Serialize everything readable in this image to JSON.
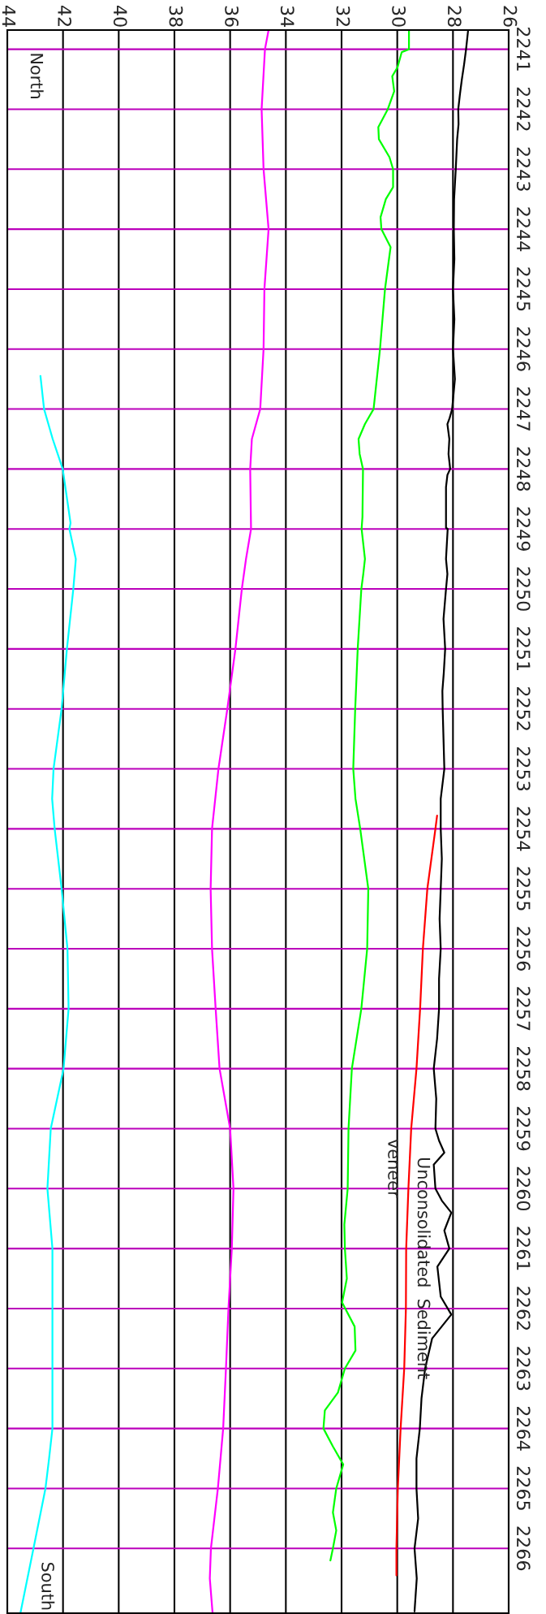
{
  "chart_data": {
    "type": "line",
    "ylim": [
      2267.08,
      2240.68
    ],
    "yticks": [
      2241,
      2242,
      2243,
      2244,
      2245,
      2246,
      2247,
      2248,
      2249,
      2250,
      2251,
      2252,
      2253,
      2254,
      2255,
      2256,
      2257,
      2258,
      2259,
      2260,
      2261,
      2262,
      2263,
      2264,
      2265,
      2266
    ],
    "xlim": [
      44,
      26
    ],
    "xticks": [
      26,
      28,
      30,
      32,
      34,
      36,
      38,
      40,
      42,
      44
    ],
    "grid": true,
    "series": [
      {
        "color": "#000000",
        "values": [
          2240.7,
          2241,
          2241.25,
          2241.5,
          2241.75,
          2242,
          2242.25,
          2242.5,
          2243,
          2243.5,
          2244,
          2244.5,
          2245,
          2245.5,
          2246,
          2246.5,
          2247,
          2247.15,
          2247.25,
          2247.5,
          2247.75,
          2248,
          2248.1,
          2248.3,
          2248.98,
          2249,
          2249.25,
          2249.5,
          2249.75,
          2250,
          2250.5,
          2251,
          2251.4,
          2251.7,
          2252,
          2252.5,
          2253,
          2253.5,
          2254,
          2254.5,
          2255,
          2255.5,
          2256,
          2256.5,
          2257,
          2257.5,
          2258,
          2258.5,
          2259,
          2259.2,
          2259.4,
          2259.6,
          2260,
          2260.2,
          2260.4,
          2260.7,
          2261,
          2261.3,
          2261.8,
          2262.1,
          2262.5,
          2263,
          2263.5,
          2264,
          2264.5,
          2265,
          2265.5,
          2266,
          2266.5,
          2267.05
        ],
        "x": [
          27.46,
          27.53,
          27.6,
          27.68,
          27.75,
          27.81,
          27.8,
          27.85,
          27.9,
          27.96,
          27.97,
          27.95,
          28.0,
          27.95,
          28.0,
          27.93,
          28.03,
          28.12,
          28.2,
          28.13,
          28.16,
          28.1,
          28.2,
          28.25,
          28.25,
          28.19,
          28.22,
          28.25,
          28.2,
          28.25,
          28.34,
          28.28,
          28.33,
          28.38,
          28.37,
          28.34,
          28.31,
          28.44,
          28.44,
          28.4,
          28.44,
          28.48,
          28.44,
          28.5,
          28.5,
          28.57,
          28.69,
          28.6,
          28.63,
          28.5,
          28.31,
          28.69,
          28.63,
          28.4,
          28.06,
          28.31,
          28.13,
          28.56,
          28.44,
          28.06,
          28.75,
          29.0,
          29.13,
          29.19,
          29.31,
          29.31,
          29.25,
          29.38,
          29.3,
          29.38
        ]
      },
      {
        "color": "#00ff00",
        "values": [
          2240.68,
          2241,
          2241.05,
          2241.3,
          2241.45,
          2241.7,
          2242,
          2242.3,
          2242.5,
          2242.8,
          2243,
          2243.3,
          2243.5,
          2243.8,
          2244,
          2244.3,
          2245,
          2246,
          2247,
          2247.25,
          2247.5,
          2247.75,
          2248,
          2248.8,
          2249,
          2249.5,
          2249.75,
          2250,
          2251,
          2252,
          2253,
          2253.5,
          2254,
          2255,
          2256,
          2257,
          2258,
          2259,
          2260,
          2260.6,
          2261,
          2261.5,
          2261.9,
          2262.3,
          2262.7,
          2263,
          2263.4,
          2263.7,
          2264,
          2264.3,
          2264.6,
          2265,
          2265.4,
          2265.7,
          2266,
          2266.2
        ],
        "x": [
          29.58,
          29.58,
          29.84,
          29.99,
          30.18,
          30.11,
          30.34,
          30.68,
          30.66,
          30.28,
          30.15,
          30.15,
          30.41,
          30.6,
          30.57,
          30.24,
          30.44,
          30.62,
          30.85,
          31.16,
          31.39,
          31.35,
          31.23,
          31.25,
          31.28,
          31.16,
          31.22,
          31.29,
          31.42,
          31.51,
          31.58,
          31.5,
          31.33,
          31.04,
          31.08,
          31.29,
          31.63,
          31.75,
          31.78,
          31.9,
          31.88,
          31.81,
          31.98,
          31.53,
          31.5,
          31.88,
          32.13,
          32.6,
          32.65,
          32.31,
          31.94,
          32.19,
          32.31,
          32.19,
          32.31,
          32.4
        ]
      },
      {
        "color": "#ff00ff",
        "values": [
          2240.68,
          2241,
          2242,
          2243,
          2244,
          2245,
          2246,
          2247,
          2247.5,
          2248,
          2249,
          2249.5,
          2250,
          2251,
          2252,
          2253,
          2254,
          2255,
          2256,
          2257,
          2258,
          2259,
          2260,
          2261,
          2262,
          2263,
          2264,
          2265,
          2266,
          2266.5,
          2267.08
        ],
        "x": [
          34.62,
          34.75,
          34.87,
          34.8,
          34.62,
          34.77,
          34.8,
          34.92,
          35.22,
          35.28,
          35.25,
          35.43,
          35.58,
          35.81,
          36.1,
          36.42,
          36.65,
          36.7,
          36.65,
          36.52,
          36.38,
          36.0,
          35.88,
          35.94,
          36.06,
          36.15,
          36.25,
          36.44,
          36.69,
          36.73,
          36.63
        ]
      },
      {
        "color": "#00ffff",
        "values": [
          2246.45,
          2247,
          2247.5,
          2248,
          2248.9,
          2249,
          2249.5,
          2250,
          2251,
          2252,
          2253,
          2253.5,
          2254,
          2255,
          2256,
          2257,
          2258,
          2259,
          2260,
          2261,
          2262,
          2263,
          2264,
          2264.5,
          2265,
          2266,
          2267.08
        ],
        "x": [
          42.81,
          42.68,
          42.37,
          42.01,
          41.73,
          41.77,
          41.54,
          41.63,
          41.86,
          42.05,
          42.34,
          42.39,
          42.3,
          42.05,
          41.84,
          41.8,
          41.98,
          42.44,
          42.56,
          42.38,
          42.38,
          42.38,
          42.38,
          42.5,
          42.63,
          43.06,
          43.53
        ]
      },
      {
        "color": "#ff0000",
        "values": [
          2253.78,
          2254,
          2255,
          2256,
          2257,
          2258,
          2259,
          2260,
          2261,
          2262,
          2263,
          2264,
          2265,
          2266,
          2266.45
        ],
        "x": [
          28.57,
          28.63,
          28.92,
          29.08,
          29.18,
          29.31,
          29.5,
          29.6,
          29.68,
          29.69,
          29.75,
          29.88,
          29.98,
          30.03,
          30.03
        ]
      }
    ],
    "annotations": [
      "North",
      "South",
      "Unconsolidated  Sediment",
      "veneer"
    ]
  }
}
